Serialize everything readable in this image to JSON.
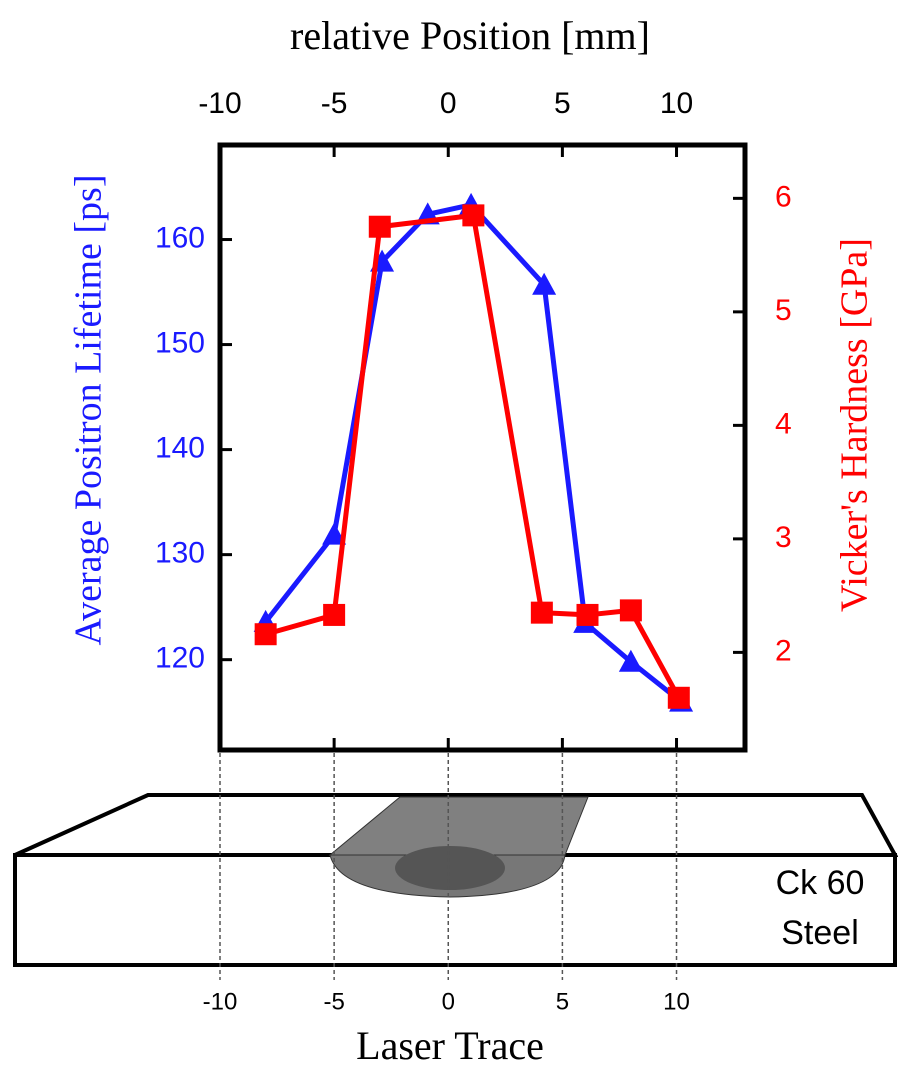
{
  "chart_data": {
    "type": "line",
    "title": "relative  Position [mm]",
    "ylabel": "Average Positron Lifetime [ps]",
    "y2label": "Vicker's Hardness [GPa]",
    "xlim": [
      -10,
      13
    ],
    "xticks": [
      -10,
      -5,
      0,
      5,
      10
    ],
    "ylim": [
      111.4,
      169
    ],
    "yticks": [
      120,
      130,
      140,
      150,
      160
    ],
    "y2lim": [
      1.14,
      6.47
    ],
    "y2ticks": [
      2,
      3,
      4,
      5,
      6
    ],
    "series": [
      {
        "color": "#1a1aff",
        "marker": "triangle",
        "x": [
          -8.0,
          -5.0,
          -2.9,
          -0.9,
          1.0,
          4.2,
          6.0,
          8.0,
          10.2
        ],
        "values": [
          123.6,
          131.9,
          157.9,
          162.4,
          163.3,
          155.7,
          123.5,
          119.8,
          116.0
        ]
      },
      {
        "color": "#ff0000",
        "marker": "square",
        "axis": "y2",
        "x": [
          -8.0,
          -5.0,
          -3.0,
          1.1,
          4.1,
          6.1,
          8.0,
          10.1
        ],
        "values": [
          2.16,
          2.33,
          5.75,
          5.85,
          2.35,
          2.33,
          2.37,
          1.6
        ]
      }
    ],
    "bottom_xlabel": "Laser Trace",
    "bottom_xticks": [
      -10,
      -5,
      0,
      5,
      10
    ],
    "sample_label": [
      "Ck 60",
      "Steel"
    ]
  }
}
